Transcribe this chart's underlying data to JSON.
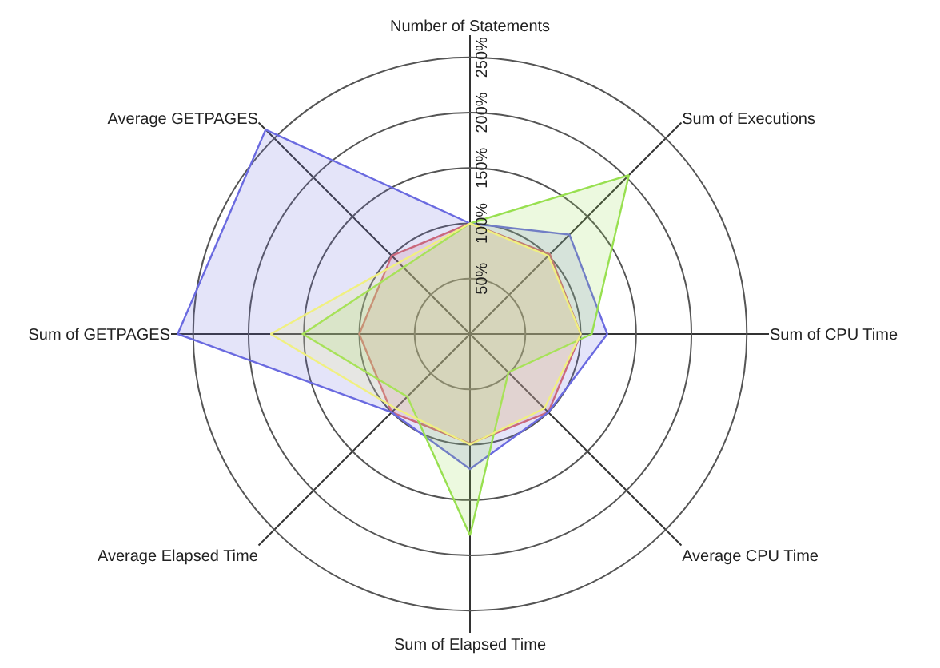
{
  "chart_data": {
    "type": "radar",
    "categories": [
      "Number of Statements",
      "Sum of Executions",
      "Sum of CPU Time",
      "Average CPU Time",
      "Sum of Elapsed Time",
      "Average Elapsed Time",
      "Sum of GETPAGES",
      "Average GETPAGES"
    ],
    "series": [
      {
        "color": "#e06868",
        "values": [
          100,
          102,
          100,
          100,
          99,
          100,
          100,
          100
        ]
      },
      {
        "color": "#6a6ae0",
        "values": [
          100,
          127,
          124,
          100,
          122,
          100,
          264,
          261
        ]
      },
      {
        "color": "#98e050",
        "values": [
          100,
          203,
          110,
          49,
          182,
          80,
          151,
          85
        ]
      },
      {
        "color": "#f0f080",
        "values": [
          100,
          100,
          100,
          95,
          100,
          95,
          180,
          91
        ]
      }
    ],
    "ylim": [
      0,
      270
    ],
    "yticks": [
      {
        "value": 50,
        "label": "50%"
      },
      {
        "value": 100,
        "label": "100%"
      },
      {
        "value": 150,
        "label": "150%"
      },
      {
        "value": 200,
        "label": "200%"
      },
      {
        "value": 250,
        "label": "250%"
      }
    ],
    "grid": true
  }
}
